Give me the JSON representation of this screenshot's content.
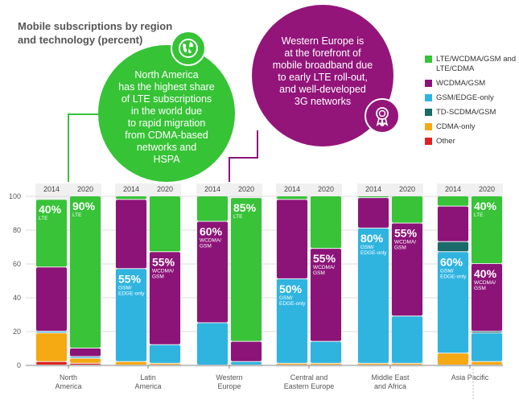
{
  "chart_data": {
    "type": "stacked-bar",
    "title_lines": [
      "Mobile subscriptions by region",
      "and technology (percent)"
    ],
    "ylim": [
      0,
      100
    ],
    "yticks": [
      "0",
      "20",
      "40",
      "60",
      "80",
      "100"
    ],
    "colors": {
      "lte": "#38c338",
      "wcdma": "#8c1478",
      "gsm": "#2fb4e0",
      "tdscdma": "#1a6a6a",
      "cdma": "#f5a912",
      "other": "#dd2222",
      "grid": "#dddddd",
      "axis": "#888888"
    },
    "legend": [
      {
        "key": "lte",
        "label": "LTE/WCDMA/GSM and LTE/CDMA"
      },
      {
        "key": "wcdma",
        "label": "WCDMA/GSM"
      },
      {
        "key": "gsm",
        "label": "GSM/EDGE-only"
      },
      {
        "key": "tdscdma",
        "label": "TD-SCDMA/GSM"
      },
      {
        "key": "cdma",
        "label": "CDMA-only"
      },
      {
        "key": "other",
        "label": "Other"
      }
    ],
    "regions": [
      {
        "name": "North America",
        "label_lines": [
          "North",
          "America"
        ],
        "years": [
          {
            "year": "2014",
            "segments": {
              "other": 2,
              "cdma": 17,
              "gsm": 1,
              "tdscdma": 0,
              "wcdma": 38,
              "lte": 40
            },
            "label": {
              "value": "40%",
              "sub": [
                "LTE"
              ],
              "top": true
            }
          },
          {
            "year": "2020",
            "segments": {
              "other": 1,
              "cdma": 3,
              "gsm": 1,
              "tdscdma": 0,
              "wcdma": 5,
              "lte": 90
            },
            "label": {
              "value": "90%",
              "sub": [
                "LTE"
              ],
              "top": true
            }
          }
        ]
      },
      {
        "name": "Latin America",
        "label_lines": [
          "Latin",
          "America"
        ],
        "years": [
          {
            "year": "2014",
            "segments": {
              "other": 0,
              "cdma": 2,
              "gsm": 55,
              "tdscdma": 0,
              "wcdma": 41,
              "lte": 2
            },
            "label": {
              "value": "55%",
              "sub": [
                "GSM/",
                "EDGE-only"
              ],
              "seg": "gsm"
            }
          },
          {
            "year": "2020",
            "segments": {
              "other": 0,
              "cdma": 1,
              "gsm": 11,
              "tdscdma": 0,
              "wcdma": 55,
              "lte": 33
            },
            "label": {
              "value": "55%",
              "sub": [
                "WCDMA/",
                "GSM"
              ],
              "seg": "wcdma"
            }
          }
        ]
      },
      {
        "name": "Western Europe",
        "label_lines": [
          "Western",
          "Europe"
        ],
        "years": [
          {
            "year": "2014",
            "segments": {
              "other": 0,
              "cdma": 0,
              "gsm": 25,
              "tdscdma": 0,
              "wcdma": 60,
              "lte": 15
            },
            "label": {
              "value": "60%",
              "sub": [
                "WCDMA/",
                "GSM"
              ],
              "seg": "wcdma"
            }
          },
          {
            "year": "2020",
            "segments": {
              "other": 0,
              "cdma": 0,
              "gsm": 2,
              "tdscdma": 0,
              "wcdma": 12,
              "lte": 85
            },
            "label": {
              "value": "85%",
              "sub": [
                "LTE"
              ],
              "top": true
            }
          }
        ]
      },
      {
        "name": "Central and Eastern Europe",
        "label_lines": [
          "Central and",
          "Eastern Europe"
        ],
        "years": [
          {
            "year": "2014",
            "segments": {
              "other": 0,
              "cdma": 1,
              "gsm": 50,
              "tdscdma": 0,
              "wcdma": 47,
              "lte": 2
            },
            "label": {
              "value": "50%",
              "sub": [
                "GSM/",
                "EDGE-only"
              ],
              "seg": "gsm"
            }
          },
          {
            "year": "2020",
            "segments": {
              "other": 0,
              "cdma": 1,
              "gsm": 13,
              "tdscdma": 0,
              "wcdma": 55,
              "lte": 31
            },
            "label": {
              "value": "55%",
              "sub": [
                "WCDMA/",
                "GSM"
              ],
              "seg": "wcdma"
            }
          }
        ]
      },
      {
        "name": "Middle East and Africa",
        "label_lines": [
          "Middle East",
          "and Africa"
        ],
        "years": [
          {
            "year": "2014",
            "segments": {
              "other": 0,
              "cdma": 1,
              "gsm": 80,
              "tdscdma": 0,
              "wcdma": 18,
              "lte": 1
            },
            "label": {
              "value": "80%",
              "sub": [
                "GSM/",
                "EDGE-only"
              ],
              "seg": "gsm"
            }
          },
          {
            "year": "2020",
            "segments": {
              "other": 0,
              "cdma": 1,
              "gsm": 28,
              "tdscdma": 0,
              "wcdma": 55,
              "lte": 16
            },
            "label": {
              "value": "55%",
              "sub": [
                "WCDMA/",
                "GSM"
              ],
              "seg": "wcdma"
            }
          }
        ]
      },
      {
        "name": "Asia Pacific",
        "label_lines": [
          "Asia Pacific"
        ],
        "years": [
          {
            "year": "2014",
            "segments": {
              "other": 0,
              "cdma": 7,
              "gsm": 60,
              "tdscdma": 6,
              "wcdma": 21,
              "lte": 6
            },
            "label": {
              "value": "60%",
              "sub": [
                "GSM/",
                "EDGE-only"
              ],
              "seg": "gsm"
            }
          },
          {
            "year": "2020",
            "segments": {
              "other": 0,
              "cdma": 2,
              "gsm": 17,
              "tdscdma": 1,
              "wcdma": 40,
              "lte": 40
            },
            "label": {
              "value": "40%",
              "sub": [
                "LTE"
              ],
              "top": true
            },
            "label2": {
              "value": "40%",
              "sub": [
                "WCDMA/",
                "GSM"
              ],
              "seg": "wcdma"
            }
          }
        ]
      }
    ]
  },
  "callouts": {
    "north_america": [
      "North America",
      "has the highest share",
      "of LTE subscriptions",
      "in the world due",
      "to rapid migration",
      "from CDMA-based",
      "networks and",
      "HSPA"
    ],
    "western_europe": [
      "Western Europe is",
      "at the forefront of",
      "mobile broadband due",
      "to early LTE roll-out,",
      "and well-developed",
      "3G networks"
    ]
  },
  "icons": {
    "globe": "globe-icon",
    "award": "award-rosette-icon"
  }
}
